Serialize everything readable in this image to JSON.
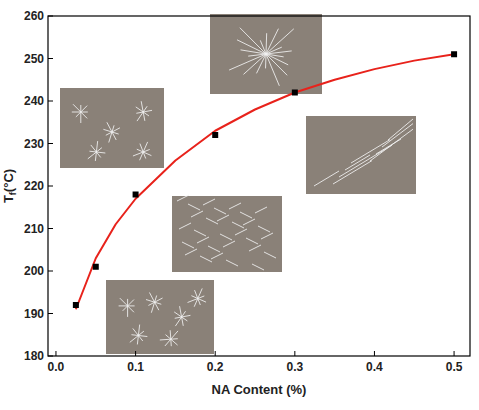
{
  "chart_data": {
    "type": "scatter",
    "x_label": "NA Content (%)",
    "y_label": "Tf(°C)",
    "xlim": [
      -0.01,
      0.52
    ],
    "ylim": [
      180,
      260
    ],
    "xticks": [
      {
        "value": 0,
        "label": "0.0"
      },
      0.1,
      0.2,
      0.3,
      0.4,
      0.5
    ],
    "yticks": [
      180,
      190,
      200,
      210,
      220,
      230,
      240,
      250,
      260
    ],
    "grid": false,
    "series": [
      {
        "type": "scatter",
        "marker": "square",
        "color": "#000000",
        "x": [
          0.025,
          0.05,
          0.1,
          0.2,
          0.3,
          0.5
        ],
        "values": [
          192,
          201,
          218,
          232,
          242,
          251
        ]
      },
      {
        "type": "line",
        "line_style": "solid",
        "color": "#e8221b",
        "x": [
          0.025,
          0.05,
          0.075,
          0.1,
          0.15,
          0.2,
          0.25,
          0.3,
          0.35,
          0.4,
          0.45,
          0.5
        ],
        "values": [
          191,
          203,
          211,
          217,
          226,
          233,
          238,
          242,
          245,
          247.5,
          249.5,
          251
        ]
      }
    ]
  }
}
